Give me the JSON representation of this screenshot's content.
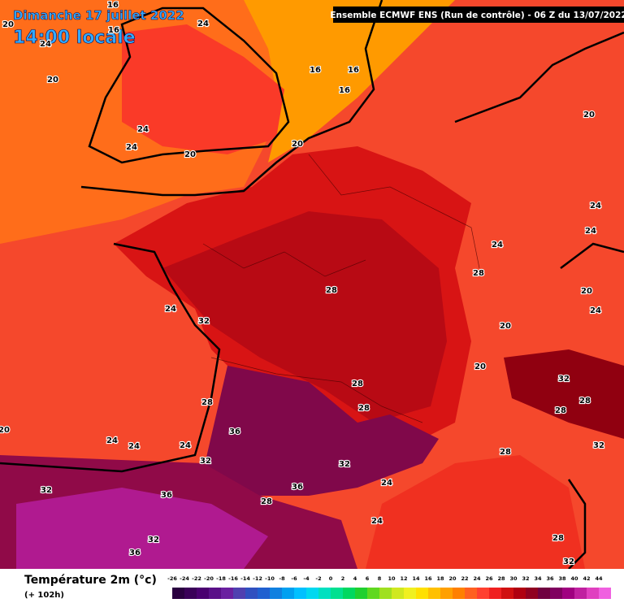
{
  "title": "Dimanche 17 juillet 2022",
  "subtitle": "14:00 locale",
  "header": "Ensemble ECMWF ENS (Run de contrôle)  -  06 Z du 13/07/2022",
  "legend": {
    "title": "Température 2m (°c)",
    "lead": "(+ 102h)",
    "ticks": [
      -26,
      -24,
      -22,
      -20,
      -18,
      -16,
      -14,
      -12,
      -10,
      -8,
      -6,
      -4,
      -2,
      0,
      2,
      4,
      6,
      8,
      10,
      12,
      14,
      16,
      18,
      20,
      22,
      24,
      26,
      28,
      30,
      32,
      34,
      36,
      38,
      40,
      42,
      44
    ],
    "colors": [
      "#2a0040",
      "#3a0058",
      "#4a0070",
      "#5a1088",
      "#6a20a0",
      "#5040b0",
      "#3050c0",
      "#2060d0",
      "#1080e0",
      "#00a0f0",
      "#00c0ff",
      "#00d8f0",
      "#00e0c0",
      "#00e090",
      "#00d860",
      "#20d030",
      "#60d820",
      "#a0e020",
      "#d0e820",
      "#f0f020",
      "#ffe000",
      "#ffc000",
      "#ffa000",
      "#ff8000",
      "#ff6020",
      "#ff4030",
      "#f02020",
      "#d01010",
      "#b00010",
      "#900020",
      "#700040",
      "#800060",
      "#a00080",
      "#c020a0",
      "#e040c0",
      "#f060e0"
    ]
  },
  "contour_labels": [
    16,
    20,
    16,
    24,
    24,
    16,
    16,
    16,
    20,
    24,
    24,
    20,
    20,
    20,
    24,
    24,
    24,
    28,
    28,
    20,
    24,
    24,
    32,
    20,
    20,
    32,
    28,
    28,
    28,
    28,
    28,
    20,
    36,
    24,
    24,
    24,
    32,
    32,
    32,
    28,
    32,
    36,
    36,
    24,
    28,
    24,
    32,
    36,
    28,
    32
  ]
}
